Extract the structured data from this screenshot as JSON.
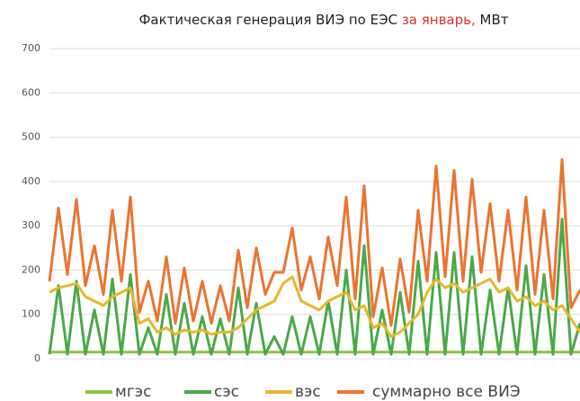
{
  "chart_data": {
    "type": "line",
    "title_parts": [
      "Фактическая генерация ВИЭ по ЕЭС ",
      "за январь,",
      " МВт"
    ],
    "title_colors": [
      "#222222",
      "#d9322b",
      "#222222"
    ],
    "categories": [
      null,
      null,
      null,
      null,
      null,
      null,
      null,
      null,
      null,
      null,
      null,
      null,
      null,
      null,
      null,
      null,
      null,
      null,
      null,
      null,
      null,
      null,
      null,
      null,
      null,
      null,
      null,
      null,
      null,
      null,
      null,
      null,
      null,
      null,
      null,
      null,
      null,
      null,
      null,
      null,
      null,
      null,
      null,
      null,
      null,
      null,
      null,
      null,
      null,
      null,
      null,
      null,
      null,
      null,
      null,
      null,
      null,
      null,
      null,
      null
    ],
    "series": [
      {
        "name": "мгэс",
        "color": "#8cc63f",
        "values": [
          15,
          15,
          15,
          15,
          15,
          15,
          15,
          15,
          15,
          15,
          15,
          15,
          15,
          15,
          15,
          15,
          15,
          15,
          15,
          15,
          15,
          15,
          15,
          15,
          15,
          15,
          15,
          15,
          15,
          15,
          15,
          15,
          15,
          15,
          15,
          15,
          15,
          15,
          15,
          15,
          15,
          15,
          15,
          15,
          15,
          15,
          15,
          15,
          15,
          15,
          15,
          15,
          15,
          15,
          15,
          15,
          15,
          15,
          15,
          15
        ]
      },
      {
        "name": "сэс",
        "color": "#4aa84a",
        "values": [
          10,
          165,
          10,
          175,
          10,
          110,
          10,
          180,
          10,
          190,
          10,
          70,
          10,
          145,
          10,
          125,
          10,
          95,
          10,
          90,
          10,
          160,
          10,
          125,
          10,
          50,
          10,
          95,
          10,
          95,
          10,
          130,
          10,
          200,
          10,
          255,
          10,
          110,
          10,
          150,
          10,
          220,
          10,
          240,
          10,
          240,
          10,
          230,
          10,
          155,
          10,
          160,
          10,
          210,
          10,
          190,
          10,
          315,
          10,
          80
        ]
      },
      {
        "name": "вэс",
        "color": "#e8b62c",
        "values": [
          150,
          160,
          165,
          170,
          140,
          130,
          120,
          140,
          150,
          160,
          80,
          90,
          60,
          70,
          55,
          65,
          60,
          65,
          55,
          60,
          60,
          70,
          90,
          110,
          120,
          130,
          170,
          185,
          130,
          120,
          110,
          130,
          140,
          150,
          110,
          120,
          70,
          80,
          50,
          60,
          80,
          100,
          150,
          180,
          160,
          170,
          150,
          160,
          170,
          180,
          150,
          160,
          130,
          140,
          120,
          130,
          110,
          120,
          90,
          60
        ]
      },
      {
        "name": "суммарно все ВИЭ",
        "color": "#ec7330",
        "values": [
          175,
          340,
          190,
          360,
          165,
          255,
          145,
          335,
          175,
          365,
          105,
          175,
          85,
          230,
          80,
          205,
          85,
          175,
          80,
          165,
          85,
          245,
          115,
          250,
          145,
          195,
          195,
          295,
          155,
          230,
          135,
          275,
          165,
          365,
          135,
          390,
          95,
          205,
          75,
          225,
          105,
          335,
          175,
          435,
          185,
          425,
          175,
          405,
          195,
          350,
          175,
          335,
          155,
          365,
          145,
          335,
          135,
          450,
          115,
          155
        ]
      }
    ],
    "ylim": [
      0,
      700
    ],
    "yticks": [
      0,
      100,
      200,
      300,
      400,
      500,
      600,
      700
    ],
    "grid": true
  }
}
